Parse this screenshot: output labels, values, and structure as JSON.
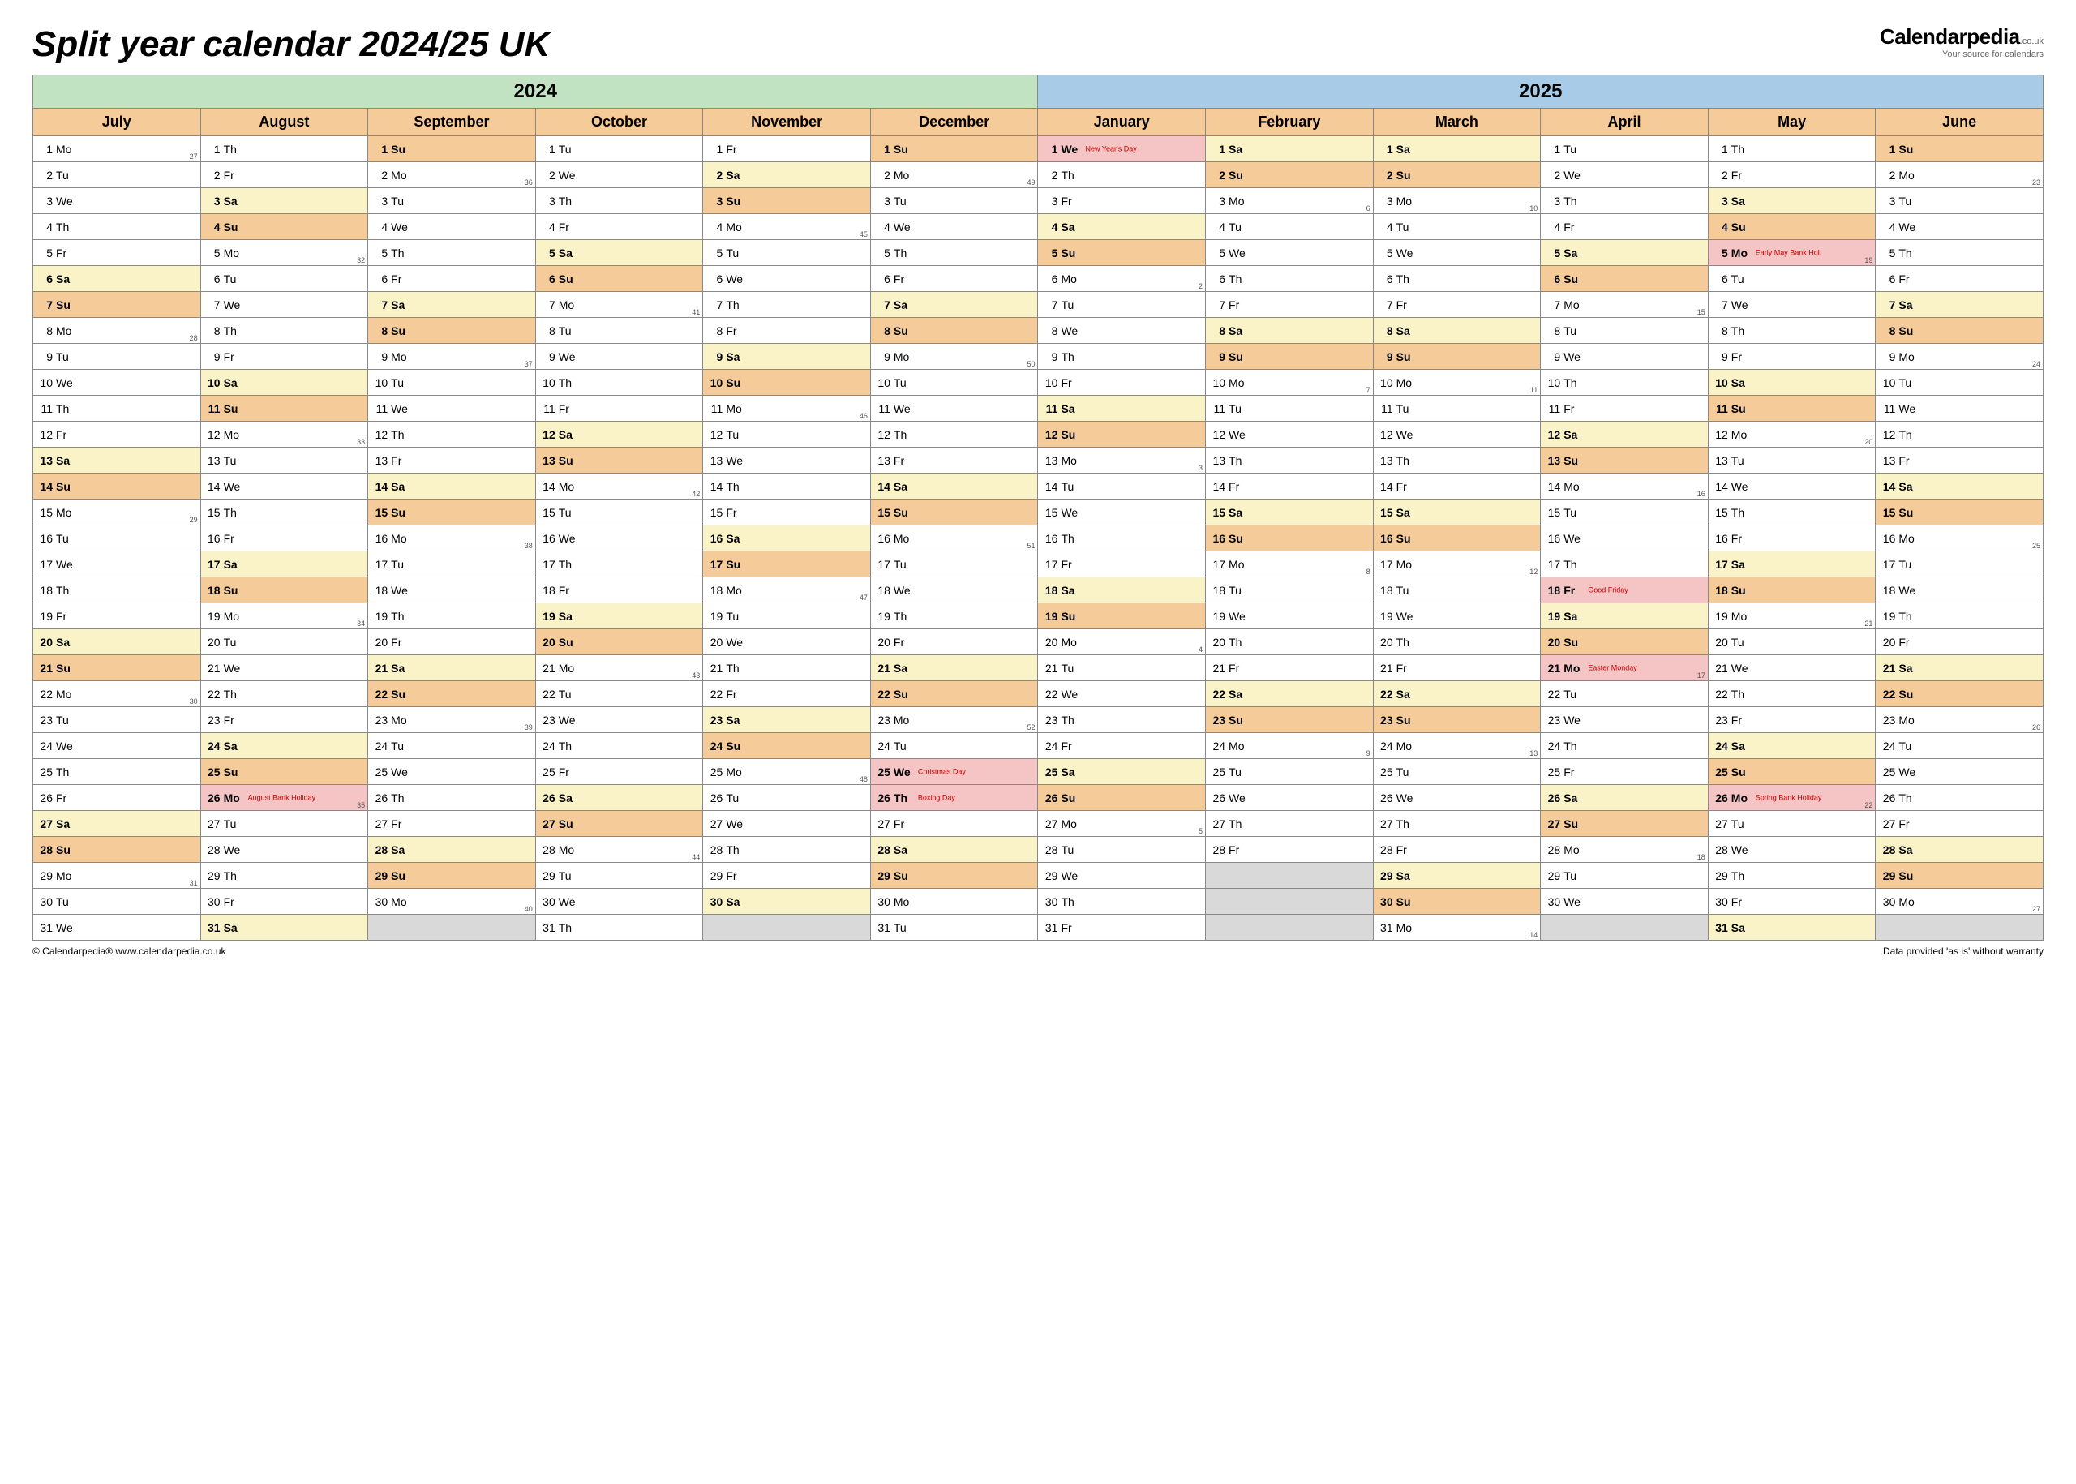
{
  "title": "Split year calendar 2024/25 UK",
  "logo": {
    "main": "Calendarpedia",
    "tld": ".co.uk",
    "sub": "Your source for calendars"
  },
  "footer_left": "© Calendarpedia®   www.calendarpedia.co.uk",
  "footer_right": "Data provided 'as is' without warranty",
  "colors": {
    "year_2024": "#c1e3c1",
    "year_2025": "#a8cce8",
    "month_hdr": "#f5cb9a",
    "saturday": "#fbf3c8",
    "sunday": "#f5cb9a",
    "holiday": "#f5c4c4",
    "empty": "#d9d9d9"
  },
  "years": [
    {
      "label": "2024",
      "colspan": 6,
      "bg": "#c1e3c1"
    },
    {
      "label": "2025",
      "colspan": 6,
      "bg": "#a8cce8"
    }
  ],
  "months": [
    "July",
    "August",
    "September",
    "October",
    "November",
    "December",
    "January",
    "February",
    "March",
    "April",
    "May",
    "June"
  ],
  "start_dow": [
    0,
    3,
    6,
    1,
    4,
    6,
    2,
    5,
    5,
    1,
    3,
    6
  ],
  "month_len": [
    31,
    31,
    30,
    31,
    30,
    31,
    31,
    28,
    31,
    30,
    31,
    30
  ],
  "week_mondays": {
    "0": {
      "1": 27,
      "8": 28,
      "15": 29,
      "22": 30,
      "29": 31
    },
    "1": {
      "5": 32,
      "12": 33,
      "19": 34,
      "26": 35
    },
    "2": {
      "2": 36,
      "9": 37,
      "16": 38,
      "23": 39,
      "30": 40
    },
    "3": {
      "7": 41,
      "14": 42,
      "21": 43,
      "28": 44
    },
    "4": {
      "4": 45,
      "11": 46,
      "18": 47,
      "25": 48
    },
    "5": {
      "2": 49,
      "9": 50,
      "16": 51,
      "23": 52
    },
    "6": {
      "6": 2,
      "13": 3,
      "20": 4,
      "27": 5
    },
    "7": {
      "3": 6,
      "10": 7,
      "17": 8,
      "24": 9
    },
    "8": {
      "3": 10,
      "10": 11,
      "17": 12,
      "24": 13,
      "31": 14
    },
    "9": {
      "7": 15,
      "14": 16,
      "21": 17,
      "28": 18
    },
    "10": {
      "5": 19,
      "12": 20,
      "19": 21,
      "26": 22
    },
    "11": {
      "2": 23,
      "9": 24,
      "16": 25,
      "23": 26,
      "30": 27
    }
  },
  "holidays": {
    "1": {
      "26": "August Bank Holiday"
    },
    "5": {
      "25": "Christmas Day",
      "26": "Boxing Day"
    },
    "6": {
      "1": "New Year's Day"
    },
    "9": {
      "18": "Good Friday",
      "21": "Easter Monday"
    },
    "10": {
      "5": "Early May Bank Hol.",
      "26": "Spring Bank Holiday"
    }
  },
  "dow_labels": [
    "Mo",
    "Tu",
    "We",
    "Th",
    "Fr",
    "Sa",
    "Su"
  ]
}
